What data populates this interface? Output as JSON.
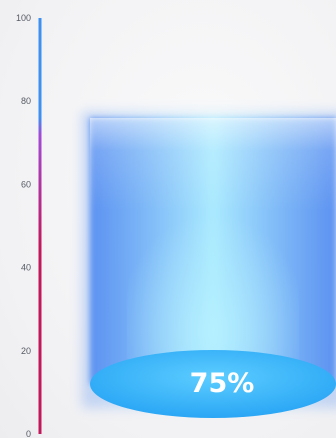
{
  "chart_data": {
    "type": "gauge",
    "value": 75,
    "value_label": "75%",
    "ylim": [
      0,
      100
    ],
    "ticks": [
      0,
      20,
      40,
      60,
      80,
      100
    ],
    "tick_labels": [
      "0",
      "20",
      "40",
      "60",
      "80",
      "100"
    ],
    "colors": {
      "scale_low": "#c2185b",
      "scale_mid": "#a14bd8",
      "scale_high": "#3d8ff0",
      "cylinder_edge": "#4a86f0",
      "cylinder_center": "#a8eaff",
      "cylinder_base": "#2aa6f5",
      "label": "#ffffff"
    }
  }
}
